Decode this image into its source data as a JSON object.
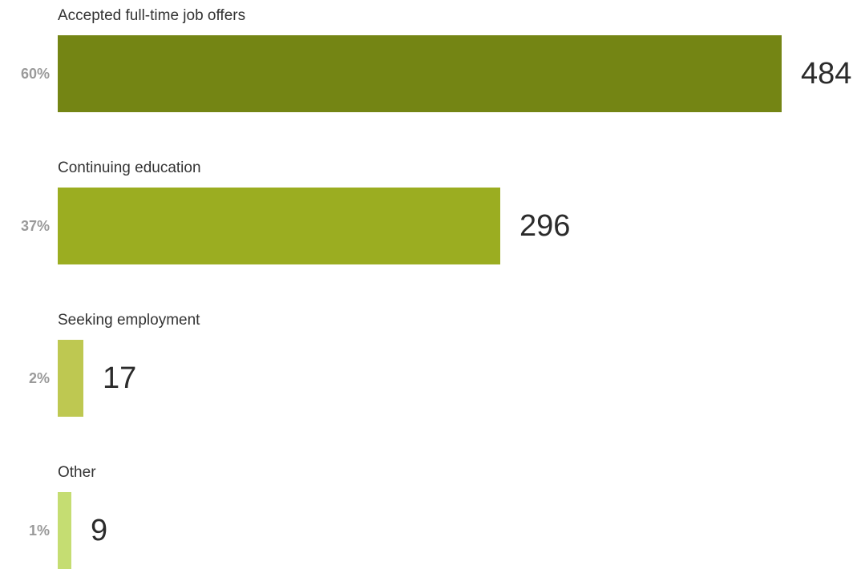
{
  "chart_data": {
    "type": "bar",
    "orientation": "horizontal",
    "categories": [
      "Accepted full-time job offers",
      "Continuing education",
      "Seeking employment",
      "Other"
    ],
    "values": [
      484,
      296,
      17,
      9
    ],
    "percent_labels": [
      "60%",
      "37%",
      "2%",
      "1%"
    ],
    "colors": [
      "#748514",
      "#9bad21",
      "#bec851",
      "#c5dd72"
    ],
    "grid": false,
    "legend": "none"
  }
}
